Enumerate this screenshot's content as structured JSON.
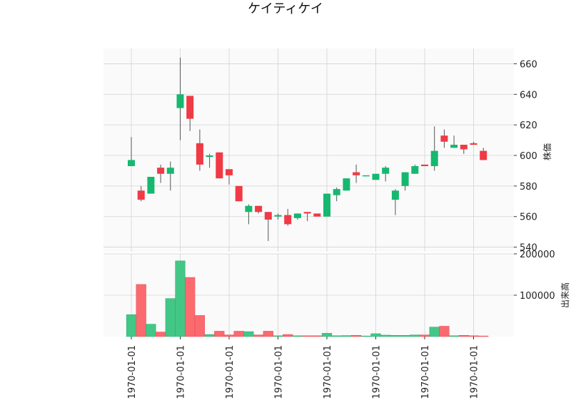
{
  "chart_data": {
    "type": "candlestick",
    "title": "ケイティケイ",
    "ylabel_price": "株価",
    "ylabel_volume": "出来高",
    "colors": {
      "up": "#15b86f",
      "down": "#f03a45",
      "up_volume": "#43c787",
      "down_volume": "#fb6a6f",
      "grid": "#d3d3d3",
      "panel_bg": "#fafafa"
    },
    "grid": true,
    "price_axis": {
      "ticks": [
        540,
        560,
        580,
        600,
        620,
        640,
        660
      ],
      "tick_labels": [
        "540",
        "560",
        "580",
        "600",
        "620",
        "640",
        "660"
      ],
      "range": [
        537,
        670
      ]
    },
    "volume_axis": {
      "ticks": [
        100000,
        200000
      ],
      "tick_labels": [
        "100000",
        "200000"
      ],
      "range": [
        0,
        200000
      ]
    },
    "x_tick_labels": [
      "1970-01-01",
      "1970-01-01",
      "1970-01-01",
      "1970-01-01",
      "1970-01-01",
      "1970-01-01",
      "1970-01-01",
      "1970-01-01"
    ],
    "x_tick_indices": [
      0,
      5,
      10,
      15,
      20,
      25,
      30,
      35
    ],
    "candles": [
      {
        "open": 593,
        "high": 612,
        "low": 593,
        "close": 597,
        "volume": 53000
      },
      {
        "open": 577,
        "high": 580,
        "low": 570,
        "close": 571,
        "volume": 126000
      },
      {
        "open": 575,
        "high": 586,
        "low": 575,
        "close": 586,
        "volume": 30000
      },
      {
        "open": 592,
        "high": 594,
        "low": 582,
        "close": 588,
        "volume": 11000
      },
      {
        "open": 588,
        "high": 596,
        "low": 577,
        "close": 592,
        "volume": 92000
      },
      {
        "open": 631,
        "high": 664,
        "low": 610,
        "close": 640,
        "volume": 183000
      },
      {
        "open": 639,
        "high": 639,
        "low": 616,
        "close": 624,
        "volume": 143000
      },
      {
        "open": 608,
        "high": 617,
        "low": 590,
        "close": 594,
        "volume": 51000
      },
      {
        "open": 599,
        "high": 601,
        "low": 592,
        "close": 600,
        "volume": 5000
      },
      {
        "open": 602,
        "high": 602,
        "low": 585,
        "close": 585,
        "volume": 13000
      },
      {
        "open": 591,
        "high": 591,
        "low": 581,
        "close": 587,
        "volume": 4000
      },
      {
        "open": 580,
        "high": 580,
        "low": 570,
        "close": 570,
        "volume": 13000
      },
      {
        "open": 563,
        "high": 568,
        "low": 555,
        "close": 567,
        "volume": 12000
      },
      {
        "open": 567,
        "high": 567,
        "low": 562,
        "close": 563,
        "volume": 4000
      },
      {
        "open": 563,
        "high": 563,
        "low": 544,
        "close": 558,
        "volume": 13000
      },
      {
        "open": 560,
        "high": 562,
        "low": 558,
        "close": 561,
        "volume": 2000
      },
      {
        "open": 561,
        "high": 565,
        "low": 554,
        "close": 555,
        "volume": 5000
      },
      {
        "open": 559,
        "high": 562,
        "low": 558,
        "close": 562,
        "volume": 2000
      },
      {
        "open": 563,
        "high": 563,
        "low": 557,
        "close": 562,
        "volume": 2000
      },
      {
        "open": 562,
        "high": 562,
        "low": 560,
        "close": 560,
        "volume": 2000
      },
      {
        "open": 560,
        "high": 575,
        "low": 560,
        "close": 575,
        "volume": 8000
      },
      {
        "open": 574,
        "high": 579,
        "low": 570,
        "close": 578,
        "volume": 2000
      },
      {
        "open": 577,
        "high": 585,
        "low": 577,
        "close": 585,
        "volume": 2500
      },
      {
        "open": 589,
        "high": 594,
        "low": 582,
        "close": 587,
        "volume": 3000
      },
      {
        "open": 587,
        "high": 587,
        "low": 587,
        "close": 587,
        "volume": 1500
      },
      {
        "open": 584,
        "high": 588,
        "low": 584,
        "close": 588,
        "volume": 7000
      },
      {
        "open": 588,
        "high": 593,
        "low": 583,
        "close": 592,
        "volume": 3500
      },
      {
        "open": 571,
        "high": 578,
        "low": 561,
        "close": 577,
        "volume": 3000
      },
      {
        "open": 580,
        "high": 589,
        "low": 577,
        "close": 589,
        "volume": 3000
      },
      {
        "open": 588,
        "high": 594,
        "low": 588,
        "close": 593,
        "volume": 4000
      },
      {
        "open": 594,
        "high": 594,
        "low": 593,
        "close": 593,
        "volume": 4000
      },
      {
        "open": 593,
        "high": 619,
        "low": 590,
        "close": 603,
        "volume": 23000
      },
      {
        "open": 613,
        "high": 617,
        "low": 605,
        "close": 609,
        "volume": 25000
      },
      {
        "open": 605,
        "high": 613,
        "low": 605,
        "close": 607,
        "volume": 2000
      },
      {
        "open": 607,
        "high": 607,
        "low": 601,
        "close": 604,
        "volume": 3000
      },
      {
        "open": 608,
        "high": 609,
        "low": 607,
        "close": 607,
        "volume": 2000
      },
      {
        "open": 603,
        "high": 605,
        "low": 597,
        "close": 597,
        "volume": 1500
      }
    ]
  }
}
